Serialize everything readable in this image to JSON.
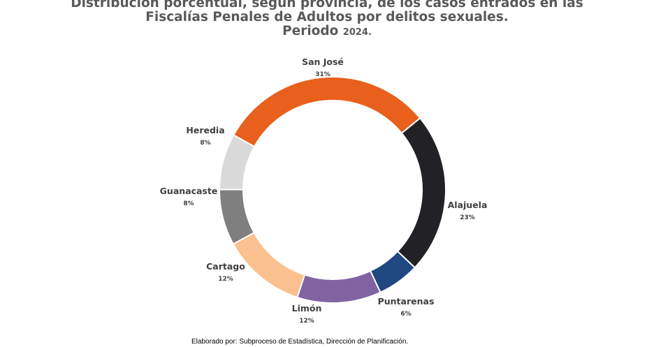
{
  "chart_data": {
    "type": "pie",
    "variant": "donut",
    "title": {
      "line1": "Distribución porcentual, según provincia, de los casos entrados en las",
      "line2": "Fiscalías Penales de Adultos por delitos sexuales.",
      "line3_prefix": "Periodo",
      "line3_year": "2024."
    },
    "categories": [
      "San José",
      "Alajuela",
      "Puntarenas",
      "Limón",
      "Cartago",
      "Guanacaste",
      "Heredia"
    ],
    "values": [
      31,
      23,
      6,
      12,
      12,
      8,
      8
    ],
    "labels": [
      "31%",
      "23%",
      "6%",
      "12%",
      "12%",
      "8%",
      "8%"
    ],
    "colors": [
      "#E8601C",
      "#222226",
      "#1F4780",
      "#8064A2",
      "#FAC090",
      "#7F7F7F",
      "#D9D9D9"
    ]
  },
  "footer": "Elaborado por: Subproceso de Estadística, Dirección de Planificación."
}
